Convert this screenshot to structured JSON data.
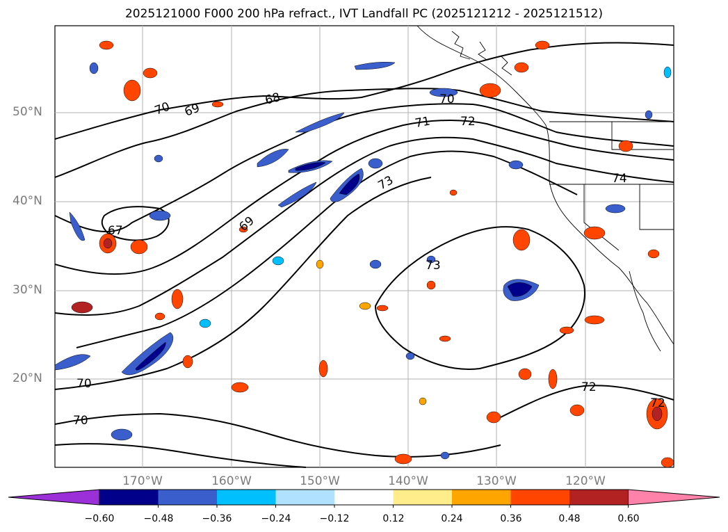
{
  "title": "2025121000 F000 200 hPa refract., IVT Landfall PC (2025121212 - 2025121512)",
  "lat_labels": [
    "50°N",
    "40°N",
    "30°N",
    "20°N"
  ],
  "lon_labels": [
    "170°W",
    "160°W",
    "150°W",
    "140°W",
    "130°W",
    "120°W"
  ],
  "contour_labels": [
    "70",
    "69",
    "68",
    "70",
    "71",
    "72",
    "73",
    "74",
    "67",
    "69",
    "73",
    "70",
    "70",
    "72",
    "72"
  ],
  "colorbar": {
    "ticks": [
      "−0.60",
      "−0.48",
      "−0.36",
      "−0.24",
      "−0.12",
      "0.12",
      "0.24",
      "0.36",
      "0.48",
      "0.60"
    ],
    "colors": [
      "#9b30d9",
      "#00008b",
      "#3a5fcd",
      "#00bfff",
      "#b0e2ff",
      "#ffffff",
      "#ffec8b",
      "#ffa500",
      "#ff4500",
      "#b22222",
      "#ff82ab"
    ]
  }
}
